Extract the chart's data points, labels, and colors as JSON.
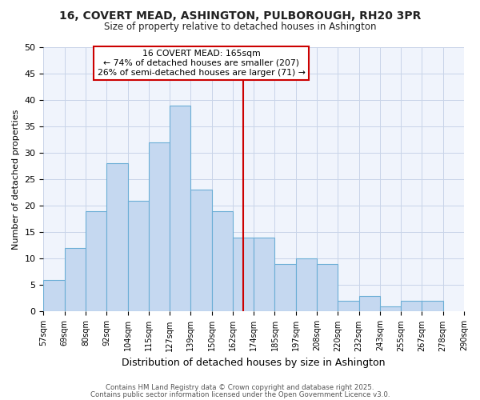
{
  "title_line1": "16, COVERT MEAD, ASHINGTON, PULBOROUGH, RH20 3PR",
  "title_line2": "Size of property relative to detached houses in Ashington",
  "xlabel": "Distribution of detached houses by size in Ashington",
  "ylabel": "Number of detached properties",
  "bar_values": [
    6,
    12,
    19,
    28,
    21,
    32,
    39,
    23,
    19,
    14,
    14,
    9,
    10,
    9,
    2,
    3,
    1,
    2,
    2
  ],
  "tick_labels": [
    "57sqm",
    "69sqm",
    "80sqm",
    "92sqm",
    "104sqm",
    "115sqm",
    "127sqm",
    "139sqm",
    "150sqm",
    "162sqm",
    "174sqm",
    "185sqm",
    "197sqm",
    "208sqm",
    "220sqm",
    "232sqm",
    "243sqm",
    "255sqm",
    "267sqm",
    "278sqm",
    "290sqm"
  ],
  "bar_color": "#c5d8f0",
  "bar_edge_color": "#6baed6",
  "vline_color": "#cc0000",
  "annotation_title": "16 COVERT MEAD: 165sqm",
  "annotation_line2": "← 74% of detached houses are smaller (207)",
  "annotation_line3": "26% of semi-detached houses are larger (71) →",
  "annotation_box_color": "#cc0000",
  "annotation_bg": "#ffffff",
  "ylim": [
    0,
    50
  ],
  "yticks": [
    0,
    5,
    10,
    15,
    20,
    25,
    30,
    35,
    40,
    45,
    50
  ],
  "grid_color": "#c8d4e8",
  "bg_color": "#ffffff",
  "plot_bg_color": "#f0f4fc",
  "footer_line1": "Contains HM Land Registry data © Crown copyright and database right 2025.",
  "footer_line2": "Contains public sector information licensed under the Open Government Licence v3.0."
}
